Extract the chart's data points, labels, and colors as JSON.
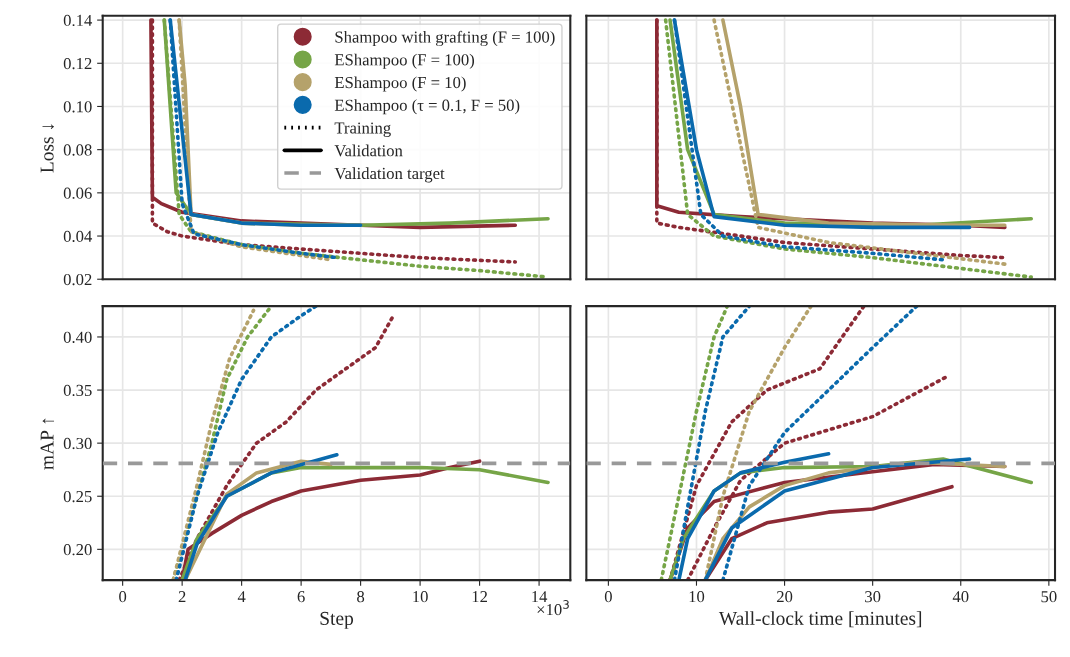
{
  "chart_data": [
    {
      "type": "line",
      "ylabel": "Loss ↓",
      "xlim": [
        -0.67,
        15.05
      ],
      "ylim": [
        0.02,
        0.142
      ],
      "xticks": [
        0,
        2,
        4,
        6,
        8,
        10,
        12,
        14
      ],
      "yticks": [
        0.02,
        0.04,
        0.06,
        0.08,
        {
          "value": 0.1,
          "label": "0.10"
        },
        0.12,
        0.14
      ],
      "tick_labels": "y",
      "grid": true,
      "legend": "top right",
      "annotations": [
        "Training",
        "Validation",
        "Validation target"
      ],
      "series": [
        {
          "name": "Shampoo with grafting (F = 100)",
          "color": "#8c2a35",
          "line_style": "solid",
          "x": [
            0.95,
            1.0,
            1.3,
            2,
            4,
            6,
            8,
            10,
            13.2
          ],
          "values": [
            0.14,
            0.058,
            0.055,
            0.051,
            0.047,
            0.046,
            0.045,
            0.044,
            0.045
          ]
        },
        {
          "color": "#8c2a35",
          "line_style": "dotted",
          "x": [
            1.0,
            1.0,
            1.5,
            2,
            4,
            6,
            8,
            10,
            13.2
          ],
          "values": [
            0.14,
            0.046,
            0.042,
            0.04,
            0.036,
            0.034,
            0.032,
            0.03,
            0.028
          ]
        },
        {
          "name": "EShampoo (F = 100)",
          "color": "#76a547",
          "line_style": "solid",
          "x": [
            1.4,
            1.8,
            2.3,
            4,
            8,
            11,
            14.3
          ],
          "values": [
            0.14,
            0.06,
            0.05,
            0.046,
            0.045,
            0.046,
            0.048
          ]
        },
        {
          "color": "#76a547",
          "line_style": "dotted",
          "x": [
            1.4,
            1.9,
            2.3,
            4,
            6,
            8,
            10,
            12,
            14.3
          ],
          "values": [
            0.14,
            0.05,
            0.042,
            0.036,
            0.032,
            0.029,
            0.026,
            0.024,
            0.021
          ]
        },
        {
          "name": "EShampoo (F = 10)",
          "color": "#b5a26b",
          "line_style": "solid",
          "x": [
            1.9,
            2.1,
            2.3,
            4,
            6,
            8
          ],
          "values": [
            0.14,
            0.11,
            0.05,
            0.046,
            0.045,
            0.045
          ]
        },
        {
          "color": "#b5a26b",
          "line_style": "dotted",
          "x": [
            1.9,
            2.3,
            4,
            6,
            7
          ],
          "values": [
            0.14,
            0.042,
            0.035,
            0.031,
            0.029
          ]
        },
        {
          "name": "EShampoo (τ = 0.1, F = 50)",
          "color": "#0a6aad",
          "line_style": "solid",
          "x": [
            1.6,
            2.3,
            4,
            6,
            8
          ],
          "values": [
            0.14,
            0.05,
            0.046,
            0.045,
            0.045
          ]
        },
        {
          "color": "#0a6aad",
          "line_style": "dotted",
          "x": [
            1.6,
            2.0,
            2.4,
            4,
            6,
            7.2
          ],
          "values": [
            0.14,
            0.055,
            0.041,
            0.036,
            0.032,
            0.03
          ]
        }
      ]
    },
    {
      "type": "line",
      "xlim": [
        -2.5,
        50.7
      ],
      "ylim": [
        0.02,
        0.142
      ],
      "xticks": [
        0,
        10,
        20,
        30,
        40,
        50
      ],
      "yticks": [
        0.02,
        0.04,
        0.06,
        0.08,
        0.1,
        0.12,
        0.14
      ],
      "tick_labels": false,
      "grid": true,
      "series": [
        {
          "color": "#8c2a35",
          "line_style": "solid",
          "x": [
            5.5,
            5.5,
            8,
            15,
            20,
            30,
            40,
            45
          ],
          "values": [
            0.14,
            0.054,
            0.051,
            0.049,
            0.048,
            0.046,
            0.045,
            0.044
          ]
        },
        {
          "color": "#8c2a35",
          "line_style": "dotted",
          "x": [
            5.5,
            5.5,
            8,
            15,
            20,
            30,
            40,
            45
          ],
          "values": [
            0.14,
            0.046,
            0.044,
            0.04,
            0.037,
            0.034,
            0.031,
            0.03
          ]
        },
        {
          "color": "#76a547",
          "line_style": "solid",
          "x": [
            7,
            9,
            12,
            20,
            35,
            48
          ],
          "values": [
            0.14,
            0.08,
            0.05,
            0.046,
            0.045,
            0.048
          ]
        },
        {
          "color": "#76a547",
          "line_style": "dotted",
          "x": [
            6.5,
            9,
            12,
            20,
            30,
            40,
            48
          ],
          "values": [
            0.14,
            0.05,
            0.04,
            0.034,
            0.03,
            0.025,
            0.021
          ]
        },
        {
          "color": "#b5a26b",
          "line_style": "solid",
          "x": [
            13,
            15,
            17,
            25,
            40,
            45
          ],
          "values": [
            0.14,
            0.1,
            0.05,
            0.046,
            0.045,
            0.045
          ]
        },
        {
          "color": "#b5a26b",
          "line_style": "dotted",
          "x": [
            12,
            17,
            25,
            35,
            45
          ],
          "values": [
            0.14,
            0.044,
            0.037,
            0.032,
            0.027
          ]
        },
        {
          "color": "#0a6aad",
          "line_style": "solid",
          "x": [
            7.5,
            10,
            12,
            20,
            30,
            41
          ],
          "values": [
            0.14,
            0.08,
            0.049,
            0.045,
            0.044,
            0.044
          ]
        },
        {
          "color": "#0a6aad",
          "line_style": "dotted",
          "x": [
            7.5,
            10.5,
            13,
            20,
            30,
            38
          ],
          "values": [
            0.14,
            0.05,
            0.04,
            0.035,
            0.032,
            0.029
          ]
        }
      ]
    },
    {
      "type": "line",
      "xlabel": "Step",
      "ylabel": "mAP ↑",
      "xlim": [
        -0.67,
        15.05
      ],
      "ylim": [
        0.171,
        0.429
      ],
      "xticks": [
        0,
        2,
        4,
        6,
        8,
        10,
        12,
        14
      ],
      "yticks": [
        {
          "value": 0.2,
          "label": "0.20"
        },
        0.25,
        {
          "value": 0.3,
          "label": "0.30"
        },
        0.35,
        {
          "value": 0.4,
          "label": "0.40"
        }
      ],
      "grid": true,
      "annotations": [
        "×10$^{3}$"
      ],
      "ref_lines": [
        {
          "axis": "y",
          "value": 0.281,
          "color": "#999999",
          "line_style": "dashed"
        }
      ],
      "series": [
        {
          "color": "#8c2a35",
          "line_style": "solid",
          "x": [
            2.0,
            2.2,
            3,
            4,
            5,
            6,
            8,
            10,
            11,
            12
          ],
          "values": [
            0.171,
            0.2,
            0.215,
            0.232,
            0.245,
            0.255,
            0.265,
            0.27,
            0.277,
            0.283
          ]
        },
        {
          "color": "#8c2a35",
          "line_style": "dotted",
          "x": [
            1.9,
            2.5,
            3.5,
            4.5,
            5.5,
            6.5,
            7.5,
            8.5,
            9.1
          ],
          "values": [
            0.171,
            0.21,
            0.26,
            0.3,
            0.32,
            0.35,
            0.37,
            0.39,
            0.42
          ]
        },
        {
          "color": "#76a547",
          "line_style": "solid",
          "x": [
            2.0,
            2.5,
            3.5,
            5,
            6,
            8,
            10,
            12,
            14.3
          ],
          "values": [
            0.171,
            0.21,
            0.25,
            0.272,
            0.277,
            0.277,
            0.277,
            0.275,
            0.263
          ]
        },
        {
          "color": "#76a547",
          "line_style": "dotted",
          "x": [
            1.7,
            2.3,
            3,
            3.5,
            4.2,
            5.0
          ],
          "values": [
            0.171,
            0.23,
            0.3,
            0.36,
            0.4,
            0.429
          ]
        },
        {
          "color": "#b5a26b",
          "line_style": "solid",
          "x": [
            2.1,
            3.5,
            4.5,
            6,
            7
          ],
          "values": [
            0.171,
            0.252,
            0.272,
            0.283,
            0.28
          ]
        },
        {
          "color": "#b5a26b",
          "line_style": "dotted",
          "x": [
            1.7,
            2.5,
            3,
            3.6,
            4.4
          ],
          "values": [
            0.171,
            0.26,
            0.32,
            0.38,
            0.425
          ]
        },
        {
          "color": "#0a6aad",
          "line_style": "solid",
          "x": [
            2.1,
            2.5,
            3.5,
            5,
            7.2
          ],
          "values": [
            0.171,
            0.205,
            0.25,
            0.272,
            0.289
          ]
        },
        {
          "color": "#0a6aad",
          "line_style": "dotted",
          "x": [
            1.8,
            2.5,
            3.2,
            4,
            5,
            6,
            6.5
          ],
          "values": [
            0.171,
            0.25,
            0.31,
            0.36,
            0.4,
            0.42,
            0.429
          ]
        }
      ]
    },
    {
      "type": "line",
      "xlabel": "Wall-clock time [minutes]",
      "xlim": [
        -2.5,
        50.7
      ],
      "ylim": [
        0.171,
        0.429
      ],
      "xticks": [
        0,
        10,
        20,
        30,
        40,
        50
      ],
      "yticks": [
        0.2,
        0.25,
        0.3,
        0.35,
        0.4
      ],
      "tick_labels": "x",
      "grid": true,
      "ref_lines": [
        {
          "axis": "y",
          "value": 0.281,
          "color": "#999999",
          "line_style": "dashed"
        }
      ],
      "series": [
        {
          "color": "#8c2a35",
          "line_style": "solid",
          "x": [
            7,
            9,
            12,
            15,
            20,
            30,
            37,
            45
          ],
          "values": [
            0.171,
            0.22,
            0.245,
            0.252,
            0.263,
            0.273,
            0.28,
            0.278
          ]
        },
        {
          "color": "#8c2a35",
          "line_style": "solid",
          "x": [
            11,
            14,
            18,
            25,
            30,
            39
          ],
          "values": [
            0.171,
            0.21,
            0.225,
            0.235,
            0.238,
            0.259
          ]
        },
        {
          "color": "#8c2a35",
          "line_style": "dotted",
          "x": [
            7,
            10,
            14,
            18,
            24,
            29
          ],
          "values": [
            0.171,
            0.26,
            0.32,
            0.35,
            0.37,
            0.429
          ]
        },
        {
          "color": "#8c2a35",
          "line_style": "dotted",
          "x": [
            9,
            12,
            15,
            20,
            30,
            38.5
          ],
          "values": [
            0.171,
            0.22,
            0.265,
            0.3,
            0.325,
            0.363
          ]
        },
        {
          "color": "#76a547",
          "line_style": "solid",
          "x": [
            7,
            8.5,
            12,
            15,
            20,
            30,
            38,
            48
          ],
          "values": [
            0.171,
            0.21,
            0.255,
            0.272,
            0.277,
            0.278,
            0.285,
            0.263
          ]
        },
        {
          "color": "#76a547",
          "line_style": "dotted",
          "x": [
            6,
            8,
            10,
            12,
            13.5
          ],
          "values": [
            0.171,
            0.25,
            0.33,
            0.4,
            0.429
          ]
        },
        {
          "color": "#b5a26b",
          "line_style": "solid",
          "x": [
            11,
            13,
            16,
            20,
            25,
            35,
            45
          ],
          "values": [
            0.171,
            0.21,
            0.24,
            0.26,
            0.272,
            0.282,
            0.278
          ]
        },
        {
          "color": "#b5a26b",
          "line_style": "dotted",
          "x": [
            11,
            13,
            16,
            20,
            23
          ],
          "values": [
            0.171,
            0.25,
            0.33,
            0.39,
            0.429
          ]
        },
        {
          "color": "#0a6aad",
          "line_style": "solid",
          "x": [
            8,
            9,
            12,
            15,
            20,
            25
          ],
          "values": [
            0.171,
            0.21,
            0.255,
            0.272,
            0.282,
            0.29
          ]
        },
        {
          "color": "#0a6aad",
          "line_style": "solid",
          "x": [
            11,
            14,
            20,
            30,
            41
          ],
          "values": [
            0.171,
            0.22,
            0.255,
            0.277,
            0.285
          ]
        },
        {
          "color": "#0a6aad",
          "line_style": "dotted",
          "x": [
            7.5,
            9,
            11,
            13,
            16
          ],
          "values": [
            0.171,
            0.24,
            0.33,
            0.4,
            0.429
          ]
        },
        {
          "color": "#0a6aad",
          "line_style": "dotted",
          "x": [
            13,
            16,
            20,
            25,
            30,
            35
          ],
          "values": [
            0.171,
            0.26,
            0.31,
            0.35,
            0.39,
            0.429
          ]
        }
      ]
    }
  ]
}
